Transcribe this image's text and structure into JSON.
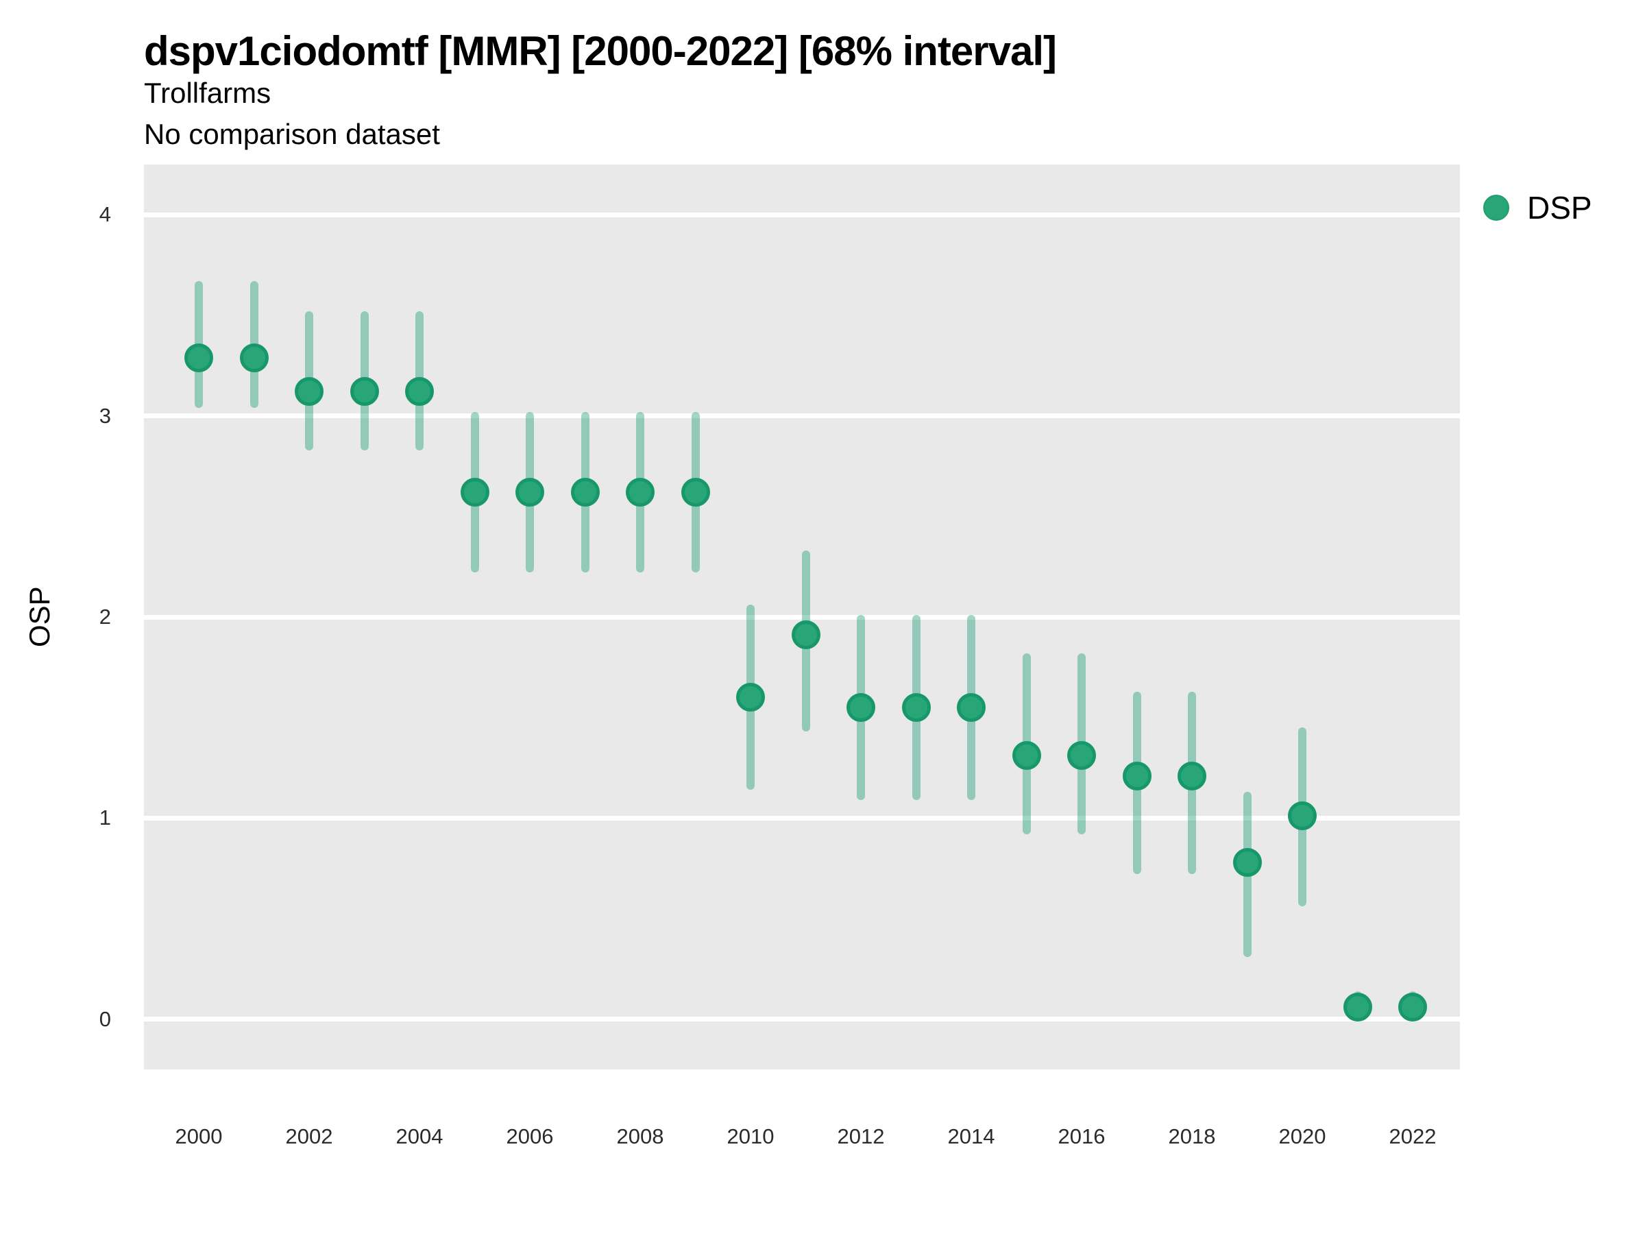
{
  "header": {
    "title": "dspv1ciodomtf [MMR] [2000-2022] [68% interval]",
    "subtitle": "Trollfarms",
    "subtitle2": "No comparison dataset"
  },
  "legend": {
    "position": "right",
    "items": [
      {
        "label": "DSP",
        "marker": "circle",
        "color": "#28a678"
      }
    ]
  },
  "colors": {
    "panel_background": "#e9e9e9",
    "gridline": "#ffffff",
    "interval_bar": "rgba(27,158,119,0.42)",
    "point_fill": "#28a678",
    "point_stroke": "#17976a",
    "text": "#000000",
    "tick_text": "#2b2b2b"
  },
  "chart_data": {
    "type": "scatter",
    "subtype": "pointrange",
    "title": "dspv1ciodomtf [MMR] [2000-2022] [68% interval]",
    "subtitle": "Trollfarms",
    "comparison": "No comparison dataset",
    "interval_level": "68%",
    "xlabel": "",
    "ylabel": "OSP",
    "ylim": [
      -0.25,
      4.25
    ],
    "yticks": [
      0,
      1,
      2,
      3,
      4
    ],
    "xticks": [
      2000,
      2002,
      2004,
      2006,
      2008,
      2010,
      2012,
      2014,
      2016,
      2018,
      2020,
      2022
    ],
    "grid": "major horizontal white gridlines on grey panel",
    "legend_position": "right",
    "series": [
      {
        "name": "DSP",
        "x": [
          2000,
          2001,
          2002,
          2003,
          2004,
          2005,
          2006,
          2007,
          2008,
          2009,
          2010,
          2011,
          2012,
          2013,
          2014,
          2015,
          2016,
          2017,
          2018,
          2019,
          2020,
          2021,
          2022
        ],
        "y": [
          3.29,
          3.29,
          3.12,
          3.12,
          3.12,
          2.62,
          2.62,
          2.62,
          2.62,
          2.62,
          1.6,
          1.91,
          1.55,
          1.55,
          1.55,
          1.31,
          1.31,
          1.21,
          1.21,
          0.78,
          1.01,
          0.06,
          0.06
        ],
        "y_lo": [
          3.04,
          3.04,
          2.83,
          2.83,
          2.83,
          2.22,
          2.22,
          2.22,
          2.22,
          2.22,
          1.14,
          1.43,
          1.09,
          1.09,
          1.09,
          0.92,
          0.92,
          0.72,
          0.72,
          0.31,
          0.56,
          -0.01,
          -0.01
        ],
        "y_hi": [
          3.67,
          3.67,
          3.52,
          3.52,
          3.52,
          3.02,
          3.02,
          3.02,
          3.02,
          3.02,
          2.06,
          2.33,
          2.01,
          2.01,
          2.01,
          1.82,
          1.82,
          1.63,
          1.63,
          1.13,
          1.45,
          0.14,
          0.14
        ]
      }
    ]
  }
}
